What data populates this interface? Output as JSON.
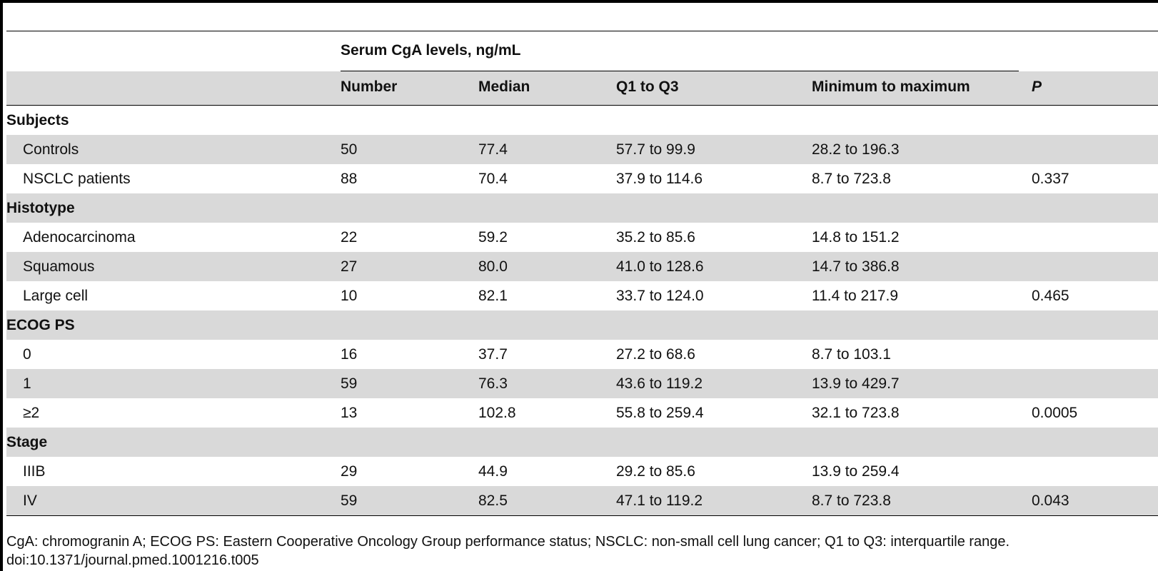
{
  "table": {
    "group_header": "Serum CgA levels, ng/mL",
    "columns": [
      "",
      "Number",
      "Median",
      "Q1 to Q3",
      "Minimum to maximum",
      "P"
    ],
    "rows": [
      {
        "kind": "section",
        "label": "Subjects"
      },
      {
        "kind": "data",
        "label": "Controls",
        "number": "50",
        "median": "77.4",
        "q1q3": "57.7 to 99.9",
        "minmax": "28.2 to 196.3",
        "p": ""
      },
      {
        "kind": "data",
        "label": "NSCLC patients",
        "number": "88",
        "median": "70.4",
        "q1q3": "37.9 to 114.6",
        "minmax": "8.7 to 723.8",
        "p": "0.337"
      },
      {
        "kind": "section",
        "label": "Histotype"
      },
      {
        "kind": "data",
        "label": "Adenocarcinoma",
        "number": "22",
        "median": "59.2",
        "q1q3": "35.2 to 85.6",
        "minmax": "14.8 to 151.2",
        "p": ""
      },
      {
        "kind": "data",
        "label": "Squamous",
        "number": "27",
        "median": "80.0",
        "q1q3": "41.0 to 128.6",
        "minmax": "14.7 to 386.8",
        "p": ""
      },
      {
        "kind": "data",
        "label": "Large cell",
        "number": "10",
        "median": "82.1",
        "q1q3": "33.7 to 124.0",
        "minmax": "11.4 to 217.9",
        "p": "0.465"
      },
      {
        "kind": "section",
        "label": "ECOG PS"
      },
      {
        "kind": "data",
        "label": "0",
        "number": "16",
        "median": "37.7",
        "q1q3": "27.2 to 68.6",
        "minmax": "8.7 to 103.1",
        "p": ""
      },
      {
        "kind": "data",
        "label": "1",
        "number": "59",
        "median": "76.3",
        "q1q3": "43.6 to 119.2",
        "minmax": "13.9 to 429.7",
        "p": ""
      },
      {
        "kind": "data",
        "label": "≥2",
        "number": "13",
        "median": "102.8",
        "q1q3": "55.8 to 259.4",
        "minmax": "32.1 to 723.8",
        "p": "0.0005"
      },
      {
        "kind": "section",
        "label": "Stage"
      },
      {
        "kind": "data",
        "label": "IIIB",
        "number": "29",
        "median": "44.9",
        "q1q3": "29.2 to 85.6",
        "minmax": "13.9 to 259.4",
        "p": ""
      },
      {
        "kind": "data",
        "label": "IV",
        "number": "59",
        "median": "82.5",
        "q1q3": "47.1 to 119.2",
        "minmax": "8.7 to 723.8",
        "p": "0.043"
      }
    ]
  },
  "footnote": {
    "abbreviations": "CgA: chromogranin A; ECOG PS: Eastern Cooperative Oncology Group performance status; NSCLC: non-small cell lung cancer; Q1 to Q3: interquartile range.",
    "doi": "doi:10.1371/journal.pmed.1001216.t005"
  }
}
